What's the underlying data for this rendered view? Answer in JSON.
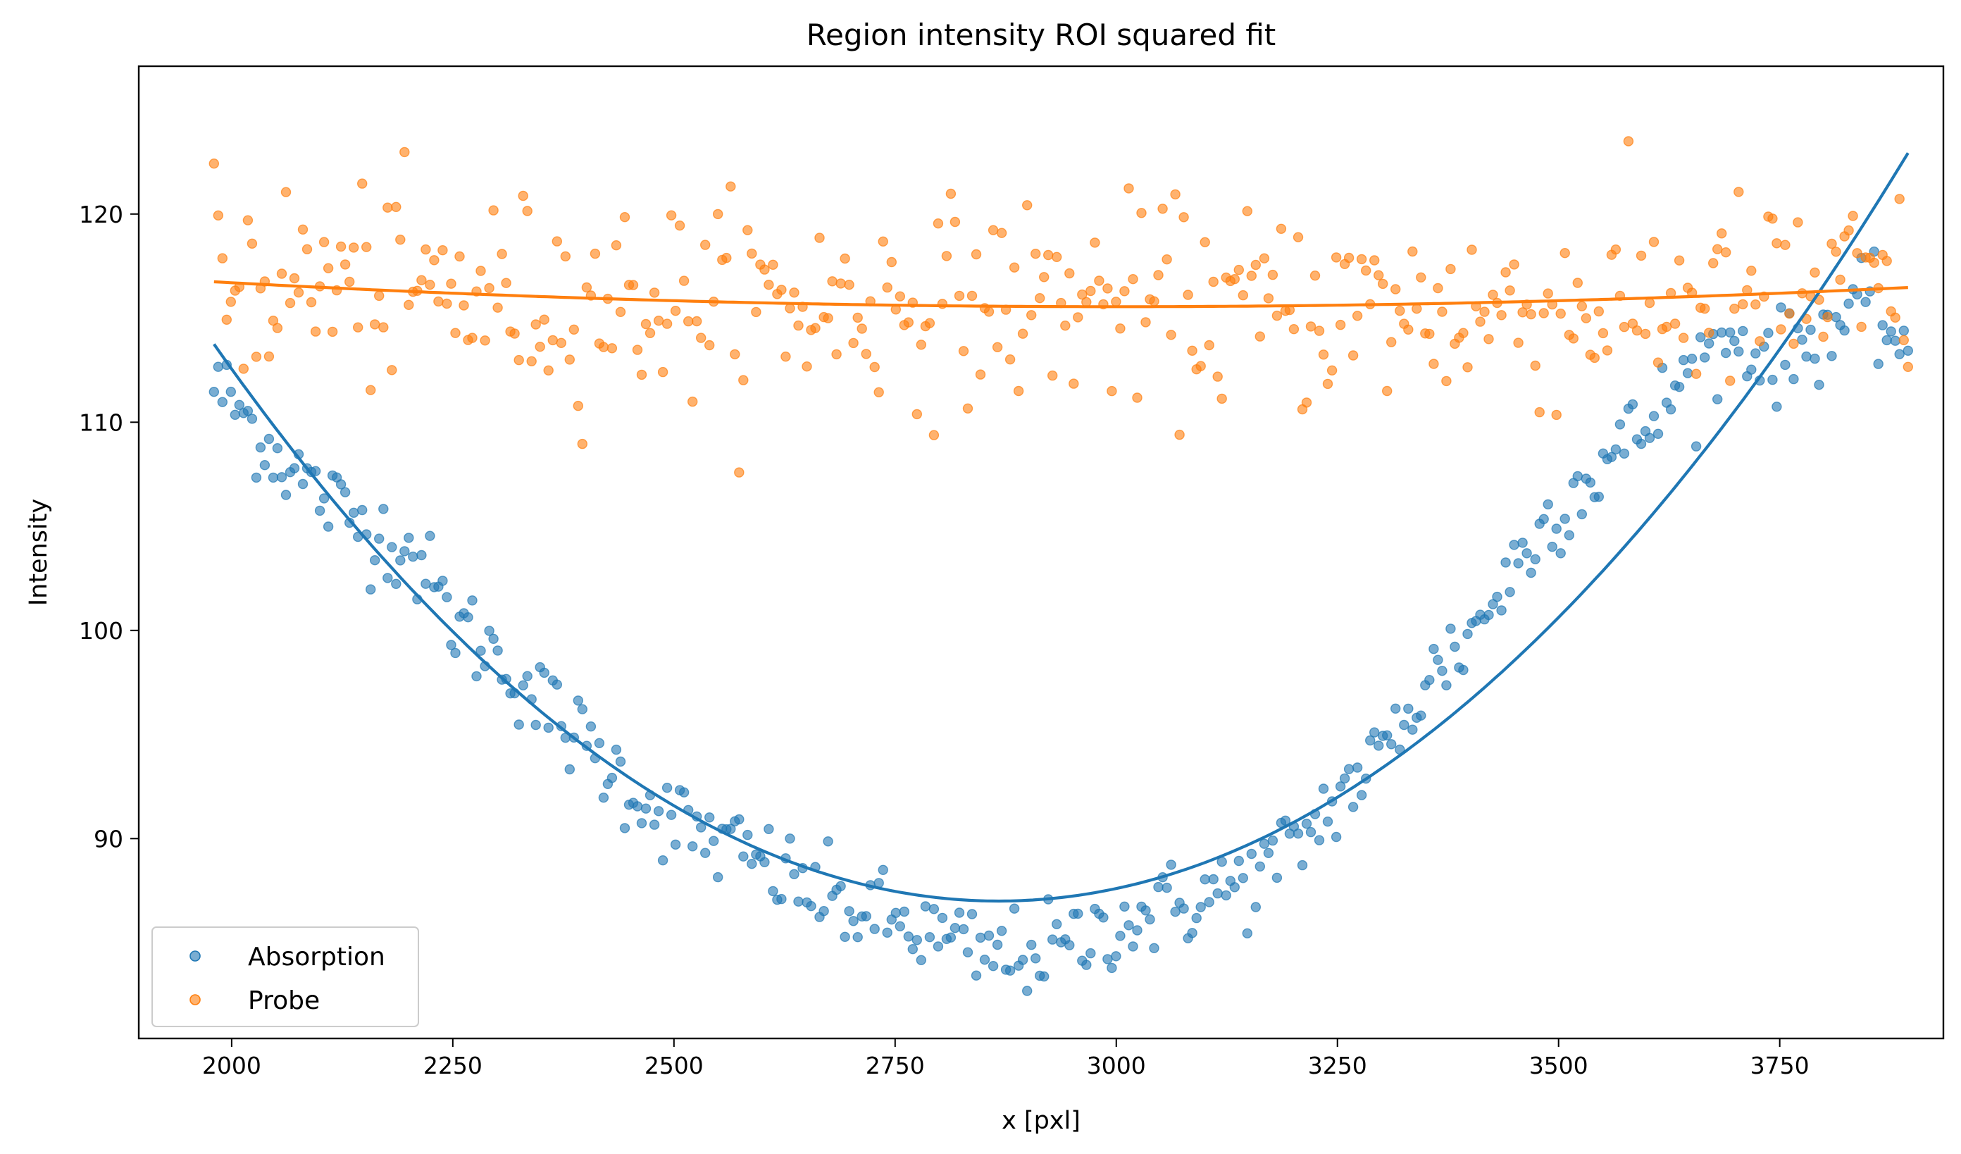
{
  "chart_data": {
    "type": "scatter",
    "title": "Region intensity ROI squared fit",
    "xlabel": "x [pxl]",
    "ylabel": "Intensity",
    "xlim": [
      1895,
      3935
    ],
    "ylim": [
      80.4,
      127.1
    ],
    "xticks": [
      2000,
      2250,
      2500,
      2750,
      3000,
      3250,
      3500,
      3750
    ],
    "yticks": [
      90,
      100,
      110,
      120
    ],
    "grid": false,
    "legend": "lower-left",
    "x_start": 1980,
    "x_end": 3895,
    "point_count": 401,
    "series": [
      {
        "name": "Absorption",
        "color": "#1f77b4",
        "kind": "scatter",
        "key_points": [
          [
            1980,
            111.8
          ],
          [
            2000,
            111.0
          ],
          [
            2050,
            108.5
          ],
          [
            2100,
            106.5
          ],
          [
            2150,
            105.0
          ],
          [
            2200,
            104.0
          ],
          [
            2250,
            100.5
          ],
          [
            2300,
            98.8
          ],
          [
            2350,
            96.5
          ],
          [
            2400,
            94.5
          ],
          [
            2450,
            92.5
          ],
          [
            2500,
            90.8
          ],
          [
            2550,
            89.8
          ],
          [
            2600,
            88.8
          ],
          [
            2650,
            87.6
          ],
          [
            2700,
            86.6
          ],
          [
            2750,
            86.0
          ],
          [
            2800,
            85.2
          ],
          [
            2850,
            84.3
          ],
          [
            2900,
            84.6
          ],
          [
            2950,
            84.8
          ],
          [
            3000,
            86.0
          ],
          [
            3050,
            86.5
          ],
          [
            3100,
            87.2
          ],
          [
            3150,
            88.0
          ],
          [
            3200,
            89.5
          ],
          [
            3250,
            92.0
          ],
          [
            3300,
            94.0
          ],
          [
            3350,
            97.5
          ],
          [
            3400,
            99.8
          ],
          [
            3450,
            103.0
          ],
          [
            3500,
            106.0
          ],
          [
            3550,
            108.0
          ],
          [
            3600,
            109.8
          ],
          [
            3650,
            112.5
          ],
          [
            3700,
            114.0
          ],
          [
            3750,
            113.0
          ],
          [
            3800,
            114.5
          ],
          [
            3850,
            115.5
          ],
          [
            3895,
            113.5
          ]
        ]
      },
      {
        "name": "Probe",
        "color": "#ff7f0e",
        "kind": "scatter",
        "key_points": [
          [
            1980,
            117.0
          ],
          [
            2100,
            116.6
          ],
          [
            2300,
            116.0
          ],
          [
            2500,
            115.8
          ],
          [
            2700,
            115.6
          ],
          [
            2900,
            115.8
          ],
          [
            3100,
            115.5
          ],
          [
            3300,
            115.3
          ],
          [
            3500,
            115.4
          ],
          [
            3700,
            116.0
          ],
          [
            3895,
            116.2
          ]
        ]
      },
      {
        "name": "Absorption fit",
        "color": "#1f77b4",
        "kind": "line",
        "quadratic": {
          "vertex_x": 2867,
          "vertex_y": 87.0,
          "a": 3.4e-05
        },
        "x_range": [
          1980,
          3895
        ]
      },
      {
        "name": "Probe fit",
        "color": "#ff7f0e",
        "kind": "line",
        "quadratic": {
          "vertex_x": 3000,
          "vertex_y": 115.55,
          "a": 1.15e-06
        },
        "x_range": [
          1980,
          3895
        ]
      }
    ]
  }
}
